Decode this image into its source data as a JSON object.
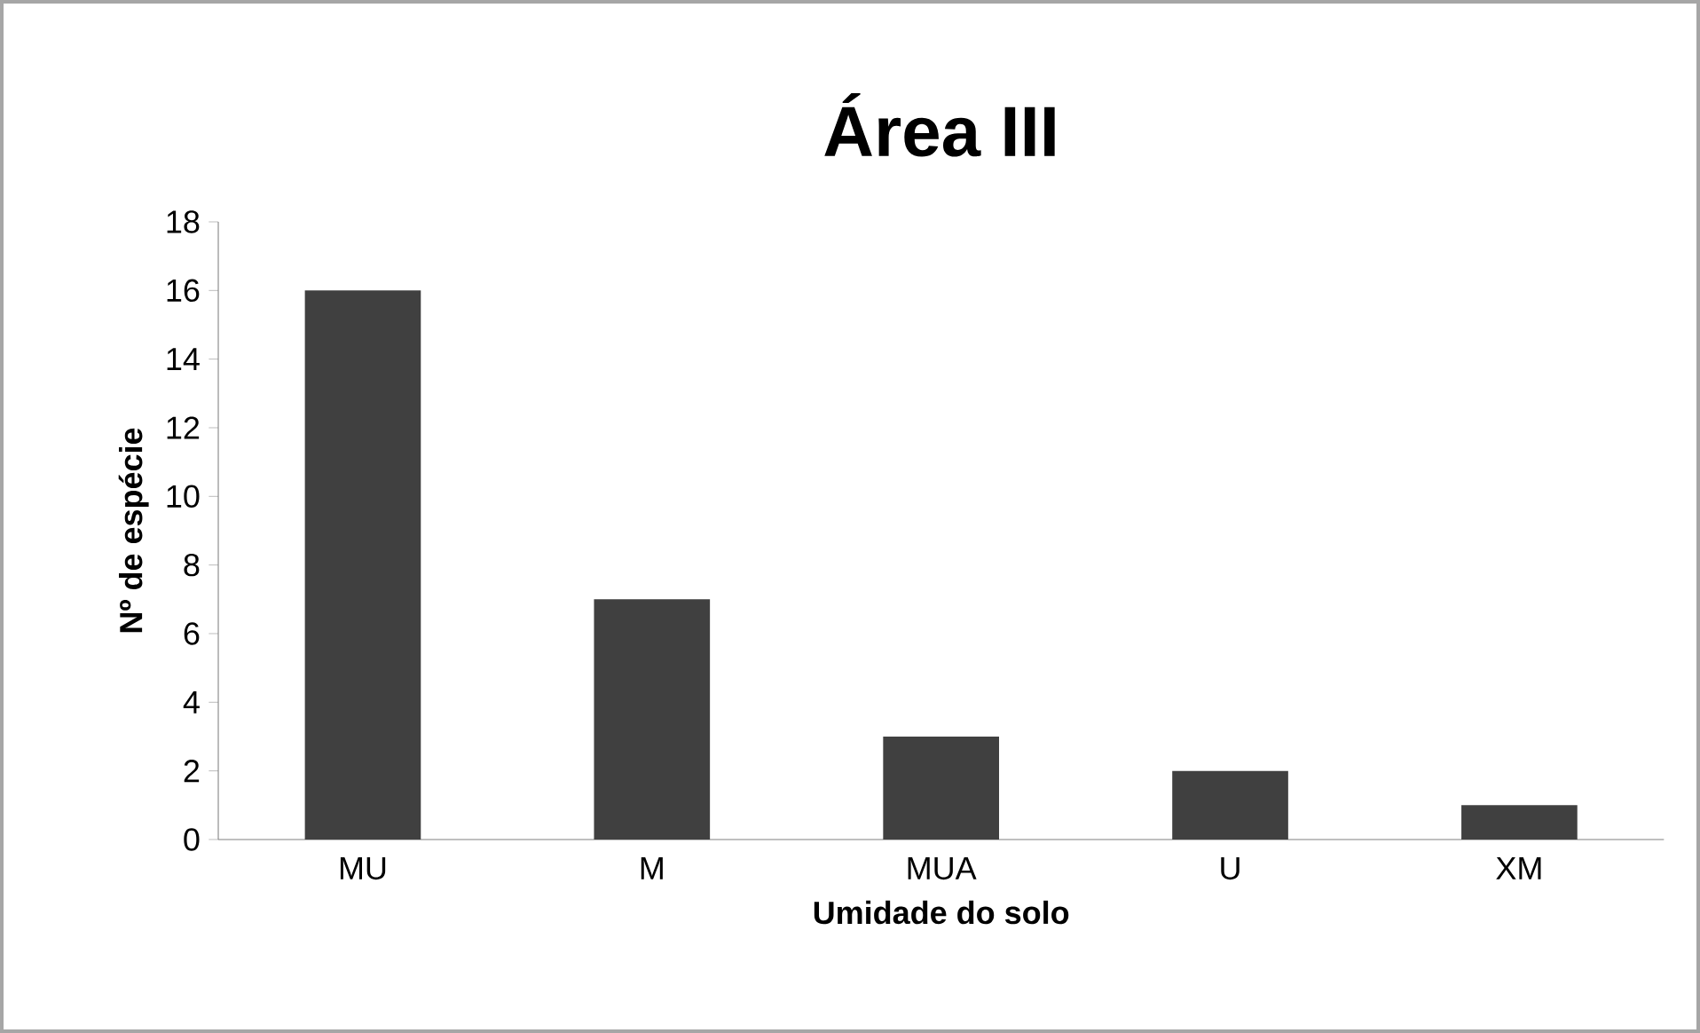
{
  "chart_data": {
    "type": "bar",
    "title": "Área III",
    "xlabel": "Umidade do solo",
    "ylabel": "Nº de espécie",
    "categories": [
      "MU",
      "M",
      "MUA",
      "U",
      "XM"
    ],
    "values": [
      16,
      7,
      3,
      2,
      1
    ],
    "color": "#404040",
    "ylim": [
      0,
      18
    ],
    "yticks": [
      0,
      2,
      4,
      6,
      8,
      10,
      12,
      14,
      16,
      18
    ],
    "grid": false
  }
}
